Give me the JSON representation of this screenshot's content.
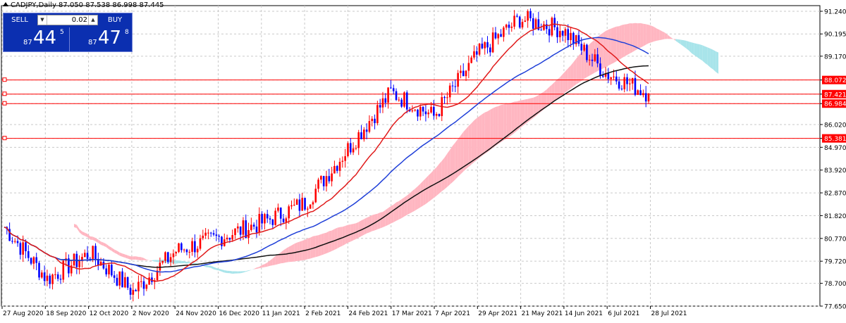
{
  "header": {
    "title": "CADJPY,Daily  87.050 87.538 86.998 87.445"
  },
  "trade_panel": {
    "sell_label": "SELL",
    "buy_label": "BUY",
    "volume": "0.02",
    "sell_price_prefix": "87",
    "sell_price_big": "44",
    "sell_price_sup": "5",
    "buy_price_prefix": "87",
    "buy_price_big": "47",
    "buy_price_sup": "8"
  },
  "colors": {
    "bull": "#ff0000",
    "bear": "#0000ff",
    "ma_fast": "#e01b1b",
    "ma_mid": "#1f3fd8",
    "ma_slow": "#111111",
    "cloud_bull": "#ffb6c1",
    "cloud_bear": "#a8e4ea",
    "hline": "#ff0000",
    "grid": "#c9c9c9"
  },
  "chart_data": {
    "type": "candlestick",
    "symbol": "CADJPY",
    "timeframe": "Daily",
    "ylim": [
      77.65,
      91.5
    ],
    "yticks": [
      91.24,
      90.195,
      89.17,
      88.072,
      87.421,
      86.984,
      86.02,
      85.381,
      84.97,
      83.92,
      82.87,
      81.82,
      80.77,
      79.72,
      78.7,
      77.65
    ],
    "xticks": [
      "27 Aug 2020",
      "18 Sep 2020",
      "12 Oct 2020",
      "2 Nov 2020",
      "24 Nov 2020",
      "16 Dec 2020",
      "11 Jan 2021",
      "2 Feb 2021",
      "24 Feb 2021",
      "17 Mar 2021",
      "7 Apr 2021",
      "29 Apr 2021",
      "21 May 2021",
      "14 Jun 2021",
      "6 Jul 2021",
      "28 Jul 2021"
    ],
    "grid": true,
    "horizontal_levels": [
      {
        "value": 88.072,
        "label": "88.072"
      },
      {
        "value": 87.421,
        "label": "87.421"
      },
      {
        "value": 86.984,
        "label": "86.984"
      },
      {
        "value": 85.381,
        "label": "85.381"
      }
    ],
    "key_closes": [
      {
        "date": "27 Aug 2020",
        "close": 81.3
      },
      {
        "date": "18 Sep 2020",
        "close": 78.9
      },
      {
        "date": "12 Oct 2020",
        "close": 80.1
      },
      {
        "date": "2 Nov 2020",
        "close": 78.3
      },
      {
        "date": "24 Nov 2020",
        "close": 80.2
      },
      {
        "date": "16 Dec 2020",
        "close": 80.8
      },
      {
        "date": "11 Jan 2021",
        "close": 81.5
      },
      {
        "date": "2 Feb 2021",
        "close": 82.4
      },
      {
        "date": "24 Feb 2021",
        "close": 84.9
      },
      {
        "date": "17 Mar 2021",
        "close": 87.5
      },
      {
        "date": "7 Apr 2021",
        "close": 86.4
      },
      {
        "date": "29 Apr 2021",
        "close": 89.2
      },
      {
        "date": "21 May 2021",
        "close": 90.9
      },
      {
        "date": "14 Jun 2021",
        "close": 90.4
      },
      {
        "date": "6 Jul 2021",
        "close": 88.4
      },
      {
        "date": "28 Jul 2021",
        "close": 87.445
      }
    ]
  }
}
